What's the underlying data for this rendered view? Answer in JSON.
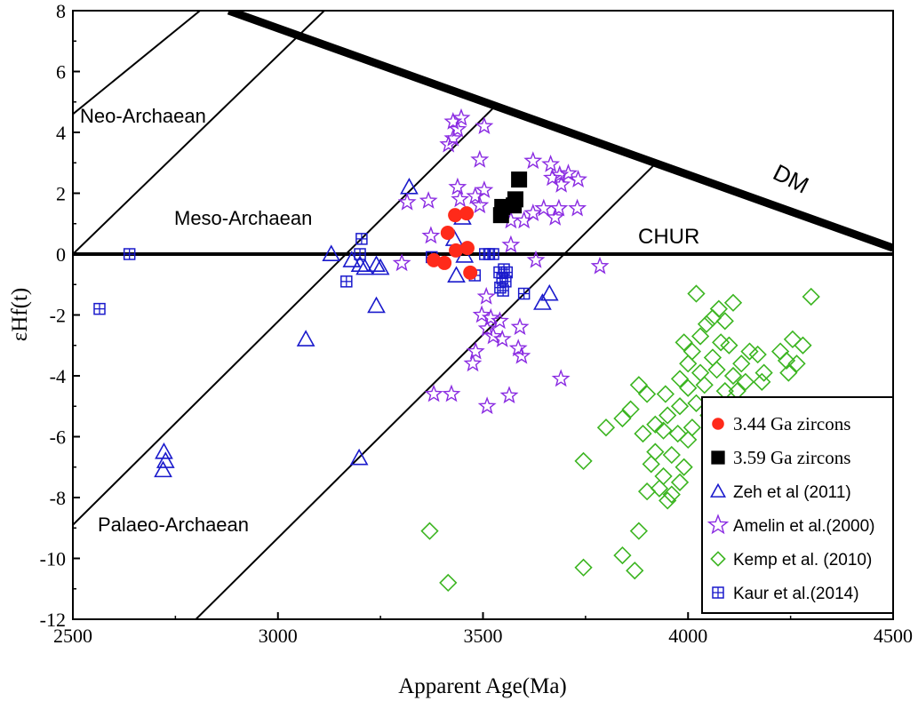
{
  "chart_data": {
    "type": "scatter",
    "xlabel": "Apparent Age(Ma)",
    "ylabel": "εHf(t)",
    "xlim": [
      2500,
      4500
    ],
    "ylim": [
      -12,
      8
    ],
    "xticks": [
      2500,
      3000,
      3500,
      4000,
      4500
    ],
    "yticks": [
      8,
      6,
      4,
      2,
      0,
      -2,
      -4,
      -6,
      -8,
      -10,
      -12
    ],
    "grid": false,
    "legend_position": "bottom-right",
    "reference_lines": [
      {
        "name": "DM",
        "label": "DM",
        "points": [
          [
            2880,
            8
          ],
          [
            4500,
            0.2
          ]
        ],
        "weight": "heavy"
      },
      {
        "name": "CHUR",
        "label": "CHUR",
        "points": [
          [
            2500,
            0
          ],
          [
            4500,
            0
          ]
        ],
        "weight": "medium"
      },
      {
        "name": "line-1",
        "points": [
          [
            2500,
            4.6
          ],
          [
            2810,
            8
          ]
        ],
        "weight": "thin"
      },
      {
        "name": "line-2",
        "points": [
          [
            2500,
            0
          ],
          [
            3113,
            8
          ]
        ],
        "weight": "thin"
      },
      {
        "name": "line-3",
        "points": [
          [
            2500,
            -8.9
          ],
          [
            3525,
            4.8
          ]
        ],
        "weight": "thin"
      },
      {
        "name": "line-4",
        "points": [
          [
            2800,
            -12
          ],
          [
            3915,
            2.9
          ]
        ],
        "weight": "thin"
      }
    ],
    "annotations": [
      "Neo-Archaean",
      "Meso-Archaean",
      "Palaeo-Archaean"
    ],
    "series": [
      {
        "name": "3.44 Ga zircons",
        "marker": "circle",
        "color": "#ff2a1a",
        "points": [
          [
            3432,
            1.28
          ],
          [
            3460,
            1.34
          ],
          [
            3414,
            0.7
          ],
          [
            3434,
            0.12
          ],
          [
            3462,
            0.2
          ],
          [
            3380,
            -0.2
          ],
          [
            3406,
            -0.29
          ],
          [
            3469,
            -0.61
          ]
        ]
      },
      {
        "name": "3.59 Ga zircons",
        "marker": "square",
        "color": "#000000",
        "points": [
          [
            3588,
            2.45
          ],
          [
            3579,
            1.8
          ],
          [
            3575,
            1.6
          ],
          [
            3547,
            1.55
          ],
          [
            3544,
            1.28
          ]
        ]
      },
      {
        "name": "Zeh et al (2011)",
        "marker": "triangle",
        "color": "#1a1acc",
        "points": [
          [
            3320,
            2.2
          ],
          [
            3130,
            0
          ],
          [
            3180,
            -0.2
          ],
          [
            3200,
            -0.35
          ],
          [
            3212,
            -0.45
          ],
          [
            3240,
            -0.35
          ],
          [
            3250,
            -0.45
          ],
          [
            3240,
            -1.7
          ],
          [
            3068,
            -2.8
          ],
          [
            3198,
            -6.7
          ],
          [
            2722,
            -6.5
          ],
          [
            2726,
            -6.8
          ],
          [
            2720,
            -7.1
          ],
          [
            3435,
            -0.7
          ],
          [
            3450,
            1.2
          ],
          [
            3430,
            0.5
          ],
          [
            3662,
            -1.3
          ],
          [
            3645,
            -1.6
          ],
          [
            3455,
            -0.05
          ]
        ]
      },
      {
        "name": "Amelin et al.(2000)",
        "marker": "star",
        "color": "#8a2be2",
        "points": [
          [
            3447,
            4.47
          ],
          [
            3438,
            4.1
          ],
          [
            3427,
            3.8
          ],
          [
            3416,
            3.6
          ],
          [
            3503,
            4.2
          ],
          [
            3427,
            4.35
          ],
          [
            3315,
            1.7
          ],
          [
            3367,
            1.75
          ],
          [
            3438,
            2.2
          ],
          [
            3444,
            1.8
          ],
          [
            3481,
            1.9
          ],
          [
            3503,
            2.1
          ],
          [
            3492,
            1.6
          ],
          [
            3622,
            3.06
          ],
          [
            3665,
            2.95
          ],
          [
            3669,
            2.5
          ],
          [
            3687,
            2.6
          ],
          [
            3708,
            2.65
          ],
          [
            3732,
            2.45
          ],
          [
            3691,
            2.28
          ],
          [
            3730,
            1.5
          ],
          [
            3685,
            1.5
          ],
          [
            3676,
            1.2
          ],
          [
            3622,
            1.34
          ],
          [
            3648,
            1.5
          ],
          [
            3568,
            1.1
          ],
          [
            3600,
            1.1
          ],
          [
            3373,
            0.6
          ],
          [
            3568,
            0.3
          ],
          [
            3629,
            -0.2
          ],
          [
            3785,
            -0.4
          ],
          [
            3302,
            -0.3
          ],
          [
            3492,
            3.1
          ],
          [
            3508,
            -1.4
          ],
          [
            3497,
            -2.0
          ],
          [
            3519,
            -2.1
          ],
          [
            3541,
            -2.2
          ],
          [
            3510,
            -2.45
          ],
          [
            3525,
            -2.7
          ],
          [
            3590,
            -2.4
          ],
          [
            3547,
            -2.8
          ],
          [
            3482,
            -3.2
          ],
          [
            3475,
            -3.6
          ],
          [
            3586,
            -3.1
          ],
          [
            3594,
            -3.35
          ],
          [
            3690,
            -4.1
          ],
          [
            3380,
            -4.6
          ],
          [
            3423,
            -4.6
          ],
          [
            3564,
            -4.65
          ],
          [
            3510,
            -5.0
          ]
        ]
      },
      {
        "name": "Kemp et al. (2010)",
        "marker": "diamond",
        "color": "#3cb521",
        "points": [
          [
            4020,
            -1.3
          ],
          [
            4300,
            -1.4
          ],
          [
            4075,
            -1.8
          ],
          [
            4110,
            -1.6
          ],
          [
            4060,
            -2.1
          ],
          [
            4045,
            -2.3
          ],
          [
            4090,
            -2.2
          ],
          [
            4030,
            -2.7
          ],
          [
            4080,
            -2.9
          ],
          [
            3990,
            -2.9
          ],
          [
            4010,
            -3.2
          ],
          [
            4060,
            -3.4
          ],
          [
            4100,
            -3.0
          ],
          [
            4150,
            -3.2
          ],
          [
            4130,
            -3.6
          ],
          [
            4170,
            -3.3
          ],
          [
            4225,
            -3.2
          ],
          [
            4255,
            -2.8
          ],
          [
            4280,
            -3.0
          ],
          [
            4240,
            -3.5
          ],
          [
            4265,
            -3.6
          ],
          [
            4245,
            -3.9
          ],
          [
            4000,
            -3.6
          ],
          [
            4030,
            -3.9
          ],
          [
            4070,
            -3.8
          ],
          [
            4110,
            -4.0
          ],
          [
            4140,
            -4.2
          ],
          [
            4185,
            -3.9
          ],
          [
            4180,
            -4.2
          ],
          [
            3980,
            -4.1
          ],
          [
            4000,
            -4.4
          ],
          [
            4040,
            -4.3
          ],
          [
            4090,
            -4.5
          ],
          [
            4120,
            -4.5
          ],
          [
            3880,
            -4.3
          ],
          [
            3900,
            -4.6
          ],
          [
            3860,
            -5.1
          ],
          [
            3840,
            -5.4
          ],
          [
            3800,
            -5.7
          ],
          [
            3945,
            -4.6
          ],
          [
            3980,
            -5.0
          ],
          [
            4020,
            -4.9
          ],
          [
            4050,
            -5.3
          ],
          [
            3950,
            -5.3
          ],
          [
            3920,
            -5.6
          ],
          [
            3890,
            -5.9
          ],
          [
            3940,
            -5.8
          ],
          [
            3975,
            -5.9
          ],
          [
            4010,
            -5.7
          ],
          [
            4000,
            -6.1
          ],
          [
            3920,
            -6.5
          ],
          [
            3960,
            -6.6
          ],
          [
            3990,
            -7.0
          ],
          [
            3910,
            -6.9
          ],
          [
            3940,
            -7.3
          ],
          [
            3930,
            -7.7
          ],
          [
            3980,
            -7.5
          ],
          [
            3900,
            -7.8
          ],
          [
            3960,
            -7.9
          ],
          [
            3950,
            -8.1
          ],
          [
            3745,
            -6.8
          ],
          [
            3370,
            -9.1
          ],
          [
            3415,
            -10.8
          ],
          [
            3745,
            -10.3
          ],
          [
            3840,
            -9.9
          ],
          [
            3870,
            -10.4
          ],
          [
            3880,
            -9.1
          ]
        ]
      },
      {
        "name": "Kaur et al.(2014)",
        "marker": "boxplus",
        "color": "#1a1acc",
        "points": [
          [
            2638,
            0
          ],
          [
            2565,
            -1.8
          ],
          [
            3204,
            0.5
          ],
          [
            3200,
            0
          ],
          [
            3167,
            -0.9
          ],
          [
            3375,
            -0.1
          ],
          [
            3480,
            -0.7
          ],
          [
            3505,
            0
          ],
          [
            3515,
            0
          ],
          [
            3525,
            0
          ],
          [
            3551,
            -0.5
          ],
          [
            3558,
            -0.6
          ],
          [
            3547,
            -0.8
          ],
          [
            3555,
            -0.9
          ],
          [
            3542,
            -1.1
          ],
          [
            3549,
            -1.2
          ],
          [
            3540,
            -0.6
          ],
          [
            3600,
            -1.3
          ]
        ]
      }
    ]
  }
}
